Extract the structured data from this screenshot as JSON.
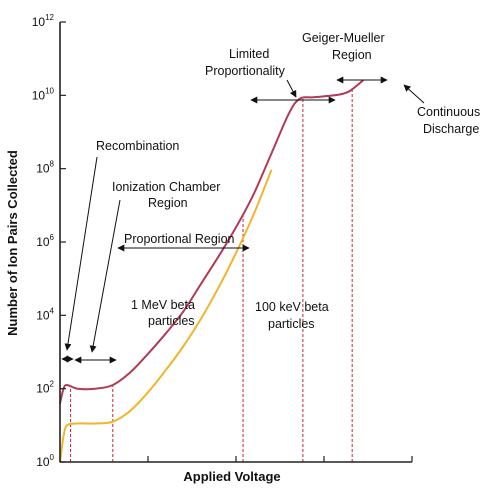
{
  "chart_data": {
    "type": "line",
    "xlabel": "Applied Voltage",
    "ylabel": "Number of Ion Pairs Collected",
    "y_scale": "log",
    "ylim": [
      1,
      1000000000000
    ],
    "y_ticks": [
      {
        "base": "10",
        "exp": "0"
      },
      {
        "base": "10",
        "exp": "2"
      },
      {
        "base": "10",
        "exp": "4"
      },
      {
        "base": "10",
        "exp": "6"
      },
      {
        "base": "10",
        "exp": "8"
      },
      {
        "base": "10",
        "exp": "10"
      },
      {
        "base": "10",
        "exp": "12"
      }
    ],
    "x_units": "relative applied voltage (axis unlabeled, 0 to 1)",
    "xlim": [
      0,
      1
    ],
    "grid": false,
    "series": [
      {
        "name": "1 MeV beta particles",
        "color": "#b23a55",
        "points": [
          [
            0.0,
            1.6
          ],
          [
            0.01,
            2.0
          ],
          [
            0.02,
            2.1
          ],
          [
            0.05,
            2.0
          ],
          [
            0.1,
            2.0
          ],
          [
            0.15,
            2.1
          ],
          [
            0.2,
            2.45
          ],
          [
            0.25,
            2.95
          ],
          [
            0.3,
            3.5
          ],
          [
            0.35,
            4.1
          ],
          [
            0.4,
            4.85
          ],
          [
            0.45,
            5.6
          ],
          [
            0.5,
            6.4
          ],
          [
            0.55,
            7.3
          ],
          [
            0.6,
            8.4
          ],
          [
            0.65,
            9.5
          ],
          [
            0.68,
            9.9
          ],
          [
            0.72,
            9.95
          ],
          [
            0.78,
            10.0
          ],
          [
            0.82,
            10.1
          ],
          [
            0.86,
            10.4
          ]
        ]
      },
      {
        "name": "100 keV beta particles",
        "color": "#f0b52a",
        "points": [
          [
            0.0,
            0.0
          ],
          [
            0.01,
            0.7
          ],
          [
            0.02,
            1.0
          ],
          [
            0.05,
            1.05
          ],
          [
            0.1,
            1.05
          ],
          [
            0.15,
            1.1
          ],
          [
            0.2,
            1.4
          ],
          [
            0.25,
            1.9
          ],
          [
            0.3,
            2.5
          ],
          [
            0.35,
            3.15
          ],
          [
            0.4,
            3.9
          ],
          [
            0.45,
            4.75
          ],
          [
            0.5,
            5.7
          ],
          [
            0.55,
            6.75
          ],
          [
            0.6,
            7.95
          ]
        ]
      }
    ],
    "boundaries_x": [
      0.03,
      0.15,
      0.52,
      0.69,
      0.83
    ],
    "annotations": {
      "recombination": "Recombination",
      "ion_chamber_1": "Ionization Chamber",
      "ion_chamber_2": "Region",
      "proportional": "Proportional Region",
      "limited_1": "Limited",
      "limited_2": "Proportionality",
      "gm_1": "Geiger-Mueller",
      "gm_2": "Region",
      "continuous_1": "Continuous",
      "continuous_2": "Discharge",
      "mev_1": "1 MeV beta",
      "mev_2": "particles",
      "kev_1": "100 keV beta",
      "kev_2": "particles"
    }
  }
}
